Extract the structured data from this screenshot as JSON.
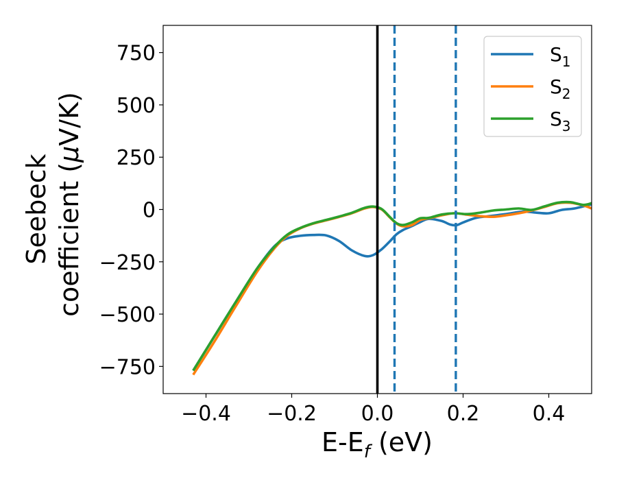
{
  "chart_data": {
    "type": "line",
    "xlabel": {
      "main": "E-E",
      "sub": "f",
      "tail": " (eV)"
    },
    "ylabel": {
      "line1": "Seebeck",
      "line2_pre": "coefficient  (",
      "line2_mu": "μ",
      "line2_post": "V/K)"
    },
    "xlim": [
      -0.5,
      0.5
    ],
    "ylim": [
      -880,
      880
    ],
    "xticks": [
      {
        "value": -0.4,
        "label": "−0.4"
      },
      {
        "value": -0.2,
        "label": "−0.2"
      },
      {
        "value": 0.0,
        "label": "0.0"
      },
      {
        "value": 0.2,
        "label": "0.2"
      },
      {
        "value": 0.4,
        "label": "0.4"
      }
    ],
    "yticks": [
      {
        "value": 750,
        "label": "750"
      },
      {
        "value": 500,
        "label": "500"
      },
      {
        "value": 250,
        "label": "250"
      },
      {
        "value": 0,
        "label": "0"
      },
      {
        "value": -250,
        "label": "−250"
      },
      {
        "value": -500,
        "label": "−500"
      },
      {
        "value": -750,
        "label": "−750"
      }
    ],
    "grid": false,
    "legend_position": "top-right",
    "series": [
      {
        "name": "S",
        "sub": "1",
        "color": "#1f77b4",
        "x": [
          -0.43,
          -0.38,
          -0.33,
          -0.28,
          -0.24,
          -0.21,
          -0.18,
          -0.15,
          -0.12,
          -0.09,
          -0.06,
          -0.03,
          -0.01,
          0.01,
          0.03,
          0.045,
          0.06,
          0.08,
          0.1,
          0.12,
          0.15,
          0.17,
          0.185,
          0.2,
          0.23,
          0.26,
          0.3,
          0.34,
          0.37,
          0.4,
          0.43,
          0.46,
          0.5
        ],
        "y": [
          -770,
          -605,
          -440,
          -280,
          -175,
          -138,
          -126,
          -122,
          -124,
          -150,
          -195,
          -222,
          -218,
          -190,
          -150,
          -118,
          -98,
          -80,
          -60,
          -45,
          -55,
          -72,
          -75,
          -62,
          -40,
          -32,
          -22,
          -10,
          -15,
          -18,
          -2,
          5,
          25
        ]
      },
      {
        "name": "S",
        "sub": "2",
        "color": "#ff7f0e",
        "x": [
          -0.43,
          -0.38,
          -0.33,
          -0.28,
          -0.24,
          -0.21,
          -0.18,
          -0.15,
          -0.12,
          -0.09,
          -0.06,
          -0.03,
          -0.01,
          0.01,
          0.03,
          0.045,
          0.06,
          0.08,
          0.1,
          0.12,
          0.15,
          0.18,
          0.21,
          0.24,
          0.27,
          0.3,
          0.33,
          0.36,
          0.39,
          0.42,
          0.45,
          0.48,
          0.5
        ],
        "y": [
          -790,
          -630,
          -460,
          -295,
          -185,
          -125,
          -90,
          -68,
          -52,
          -36,
          -18,
          5,
          12,
          0,
          -40,
          -68,
          -80,
          -75,
          -50,
          -42,
          -28,
          -18,
          -25,
          -32,
          -35,
          -28,
          -18,
          -5,
          12,
          30,
          32,
          20,
          5
        ]
      },
      {
        "name": "S",
        "sub": "3",
        "color": "#2ca02c",
        "x": [
          -0.43,
          -0.38,
          -0.33,
          -0.28,
          -0.24,
          -0.21,
          -0.18,
          -0.15,
          -0.12,
          -0.09,
          -0.06,
          -0.03,
          -0.01,
          0.01,
          0.03,
          0.045,
          0.06,
          0.08,
          0.1,
          0.12,
          0.15,
          0.18,
          0.21,
          0.24,
          0.27,
          0.3,
          0.33,
          0.36,
          0.39,
          0.42,
          0.45,
          0.48,
          0.5
        ],
        "y": [
          -770,
          -605,
          -440,
          -280,
          -178,
          -120,
          -88,
          -66,
          -50,
          -34,
          -16,
          8,
          14,
          2,
          -38,
          -66,
          -74,
          -62,
          -42,
          -40,
          -24,
          -18,
          -22,
          -15,
          -5,
          0,
          5,
          -2,
          15,
          32,
          35,
          22,
          30
        ]
      }
    ],
    "vlines": [
      {
        "x": 0.0,
        "color": "#000000",
        "style": "solid"
      },
      {
        "x": 0.04,
        "color": "#1f77b4",
        "style": "dashed"
      },
      {
        "x": 0.183,
        "color": "#1f77b4",
        "style": "dashed"
      }
    ]
  }
}
